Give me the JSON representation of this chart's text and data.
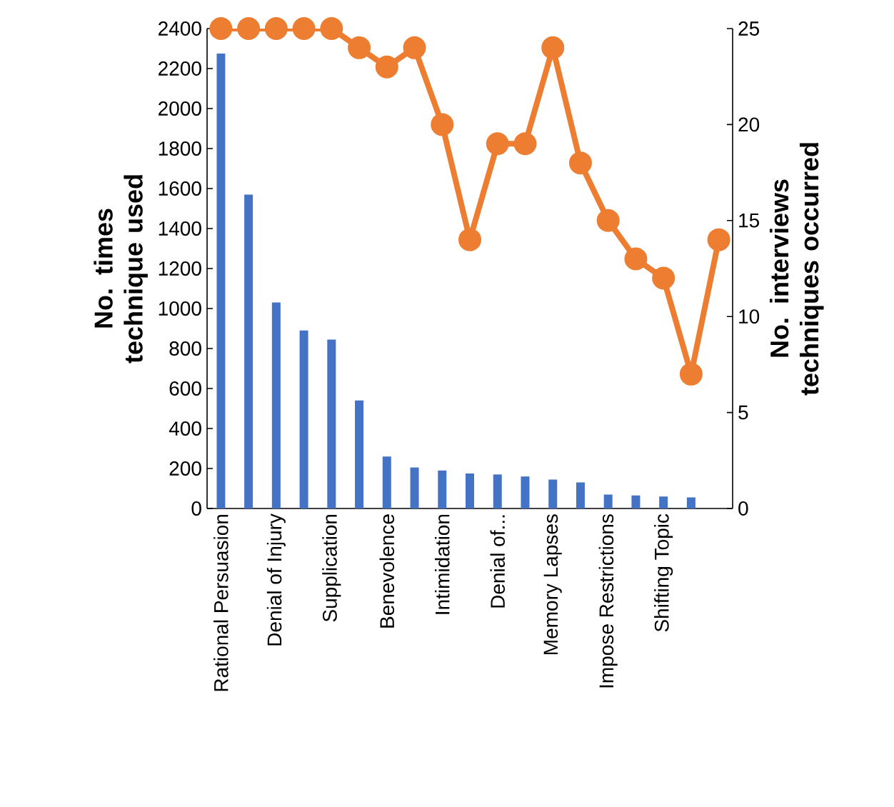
{
  "chart_data": {
    "type": "bar",
    "ylabel": "No. times technique used",
    "y2label": "No. interviews techniques occurred",
    "categories": [
      "Rational Persuasion",
      null,
      "Denial of Injury",
      null,
      "Supplication",
      null,
      "Benevolence",
      null,
      "Intimidation",
      null,
      "Denial of...",
      null,
      "Memory Lapses",
      null,
      "Impose Restrictions",
      null,
      "Shifting Topic",
      null,
      null
    ],
    "series": [
      {
        "color": "#4472c4",
        "values": [
          2275,
          1570,
          1030,
          890,
          845,
          540,
          260,
          205,
          190,
          175,
          170,
          160,
          145,
          130,
          70,
          65,
          60,
          55,
          null
        ]
      },
      {
        "type": "line",
        "axis": "y2",
        "color": "#ed7d31",
        "marker": "circle",
        "values": [
          25,
          25,
          25,
          25,
          25,
          24,
          23,
          24,
          20,
          14,
          19,
          19,
          24,
          18,
          15,
          13,
          12,
          7,
          14
        ]
      }
    ],
    "ylim": [
      0,
      2400
    ],
    "yticks": [
      0,
      200,
      400,
      600,
      800,
      1000,
      1200,
      1400,
      1600,
      1800,
      2000,
      2200,
      2400
    ],
    "y2lim": [
      0,
      25
    ],
    "y2ticks": [
      0,
      5,
      10,
      15,
      20,
      25
    ],
    "grid": false
  }
}
